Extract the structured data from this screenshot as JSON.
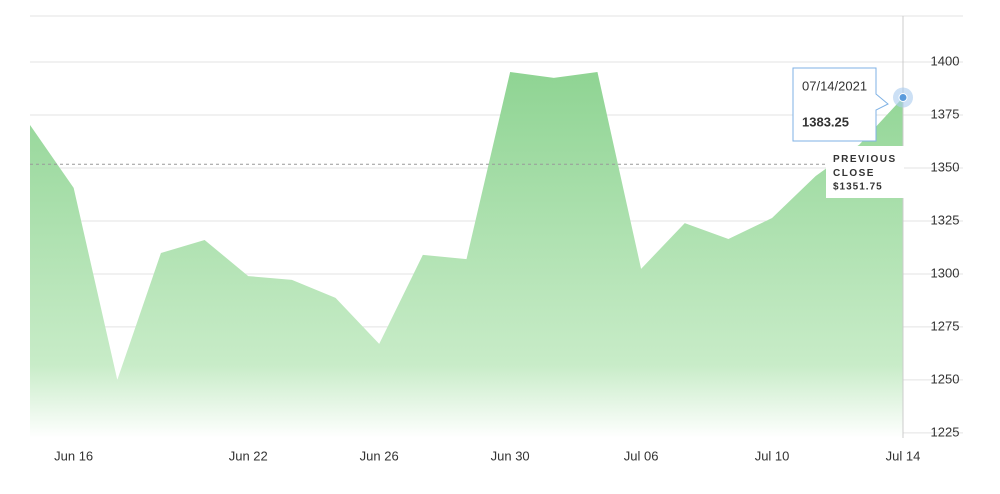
{
  "chart_data": {
    "type": "area",
    "categories": [
      null,
      "Jun 16",
      null,
      null,
      null,
      "Jun 22",
      null,
      null,
      "Jun 26",
      null,
      null,
      "Jun 30",
      null,
      null,
      "Jul 06",
      null,
      null,
      "Jul 10",
      null,
      null,
      "Jul 14"
    ],
    "values": [
      1370.3,
      1340.6,
      1250,
      1309.9,
      1316,
      1299,
      1297.2,
      1288.7,
      1267,
      1309,
      1307,
      1395.3,
      1392.5,
      1395.3,
      1302.4,
      1324,
      1316.5,
      1326.4,
      1346.2,
      1361,
      1383.25
    ],
    "value_labels": {
      "20": "1383.25"
    },
    "color": "#8fd493",
    "ylim": [
      1222.6,
      1421.7
    ],
    "yticks": [
      1225,
      1250,
      1275,
      1300,
      1325,
      1350,
      1375,
      1400
    ],
    "grid": true,
    "previous_close": {
      "value": 1351.75,
      "label": "$1351.75",
      "title": "PREVIOUS CLOSE"
    },
    "tooltip": {
      "date": "07/14/2021",
      "index": 20
    }
  }
}
